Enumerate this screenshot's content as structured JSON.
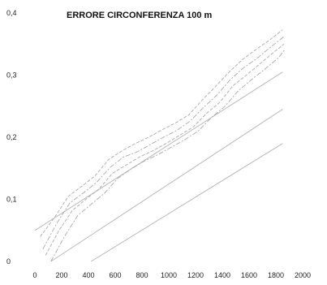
{
  "chart_data": {
    "type": "line",
    "title": "ERRORE CIRCONFERENZA 100 m",
    "xlabel": "",
    "ylabel": "",
    "xlim": [
      0,
      2000
    ],
    "ylim": [
      0,
      0.4
    ],
    "x_ticks": [
      0,
      200,
      400,
      600,
      800,
      1000,
      1200,
      1400,
      1600,
      1800,
      2000
    ],
    "x_tick_labels": [
      "0",
      "200",
      "400",
      "600",
      "800",
      "1000",
      "1200",
      "1400",
      "1600",
      "1800",
      "2000"
    ],
    "y_ticks": [
      0,
      0.1,
      0.2,
      0.3,
      0.4
    ],
    "y_tick_labels": [
      "0",
      "0,1",
      "0,2",
      "0,3",
      "0,4"
    ],
    "grid": false,
    "legend": "none",
    "colors": {
      "lines": "#b9b9b9",
      "noisy": "#a9a9a9",
      "axis_text": "#222222"
    },
    "series": [
      {
        "x": [
          0,
          1850
        ],
        "y": [
          0.05,
          0.305
        ]
      },
      {
        "x": [
          120,
          1850
        ],
        "y": [
          0,
          0.245
        ]
      },
      {
        "x": [
          420,
          1850
        ],
        "y": [
          0,
          0.19
        ]
      },
      {
        "x": [
          40,
          150,
          250,
          350,
          450,
          550,
          650,
          750,
          850,
          950,
          1050,
          1150,
          1250,
          1350,
          1450,
          1550,
          1650,
          1750,
          1850
        ],
        "y": [
          0.04,
          0.072,
          0.105,
          0.121,
          0.138,
          0.164,
          0.178,
          0.19,
          0.2,
          0.212,
          0.223,
          0.236,
          0.26,
          0.282,
          0.305,
          0.325,
          0.341,
          0.356,
          0.373
        ]
      },
      {
        "x": [
          60,
          160,
          260,
          360,
          460,
          560,
          660,
          760,
          860,
          960,
          1060,
          1160,
          1260,
          1360,
          1460,
          1560,
          1660,
          1760,
          1860
        ],
        "y": [
          0.02,
          0.06,
          0.094,
          0.11,
          0.127,
          0.151,
          0.168,
          0.176,
          0.188,
          0.2,
          0.211,
          0.226,
          0.248,
          0.268,
          0.293,
          0.312,
          0.327,
          0.345,
          0.362
        ]
      },
      {
        "x": [
          80,
          180,
          280,
          380,
          480,
          580,
          680,
          780,
          880,
          980,
          1080,
          1180,
          1280,
          1380,
          1480,
          1580,
          1680,
          1780,
          1860
        ],
        "y": [
          0.01,
          0.05,
          0.082,
          0.1,
          0.117,
          0.142,
          0.155,
          0.168,
          0.178,
          0.19,
          0.203,
          0.216,
          0.238,
          0.256,
          0.283,
          0.3,
          0.318,
          0.336,
          0.35
        ]
      },
      {
        "x": [
          120,
          220,
          320,
          420,
          520,
          620,
          720,
          820,
          920,
          1020,
          1120,
          1220,
          1320,
          1420,
          1520,
          1620,
          1720,
          1820,
          1870
        ],
        "y": [
          0.0,
          0.04,
          0.074,
          0.092,
          0.11,
          0.134,
          0.149,
          0.162,
          0.172,
          0.184,
          0.196,
          0.21,
          0.232,
          0.25,
          0.275,
          0.293,
          0.31,
          0.328,
          0.342
        ]
      }
    ]
  }
}
